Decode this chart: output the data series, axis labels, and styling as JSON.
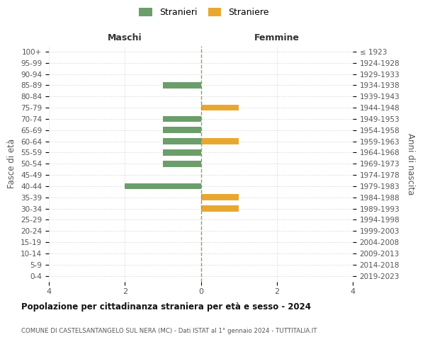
{
  "age_groups": [
    "0-4",
    "5-9",
    "10-14",
    "15-19",
    "20-24",
    "25-29",
    "30-34",
    "35-39",
    "40-44",
    "45-49",
    "50-54",
    "55-59",
    "60-64",
    "65-69",
    "70-74",
    "75-79",
    "80-84",
    "85-89",
    "90-94",
    "95-99",
    "100+"
  ],
  "birth_years": [
    "2019-2023",
    "2014-2018",
    "2009-2013",
    "2004-2008",
    "1999-2003",
    "1994-1998",
    "1989-1993",
    "1984-1988",
    "1979-1983",
    "1974-1978",
    "1969-1973",
    "1964-1968",
    "1959-1963",
    "1954-1958",
    "1949-1953",
    "1944-1948",
    "1939-1943",
    "1934-1938",
    "1929-1933",
    "1924-1928",
    "≤ 1923"
  ],
  "maschi_stranieri": [
    0,
    0,
    0,
    0,
    0,
    0,
    0,
    0,
    2,
    0,
    1,
    1,
    1,
    1,
    1,
    0,
    0,
    1,
    0,
    0,
    0
  ],
  "femmine_straniere": [
    0,
    0,
    0,
    0,
    0,
    0,
    1,
    1,
    0,
    0,
    0,
    0,
    1,
    0,
    0,
    1,
    0,
    0,
    0,
    0,
    0
  ],
  "color_maschi": "#6b9e6b",
  "color_femmine": "#e8a830",
  "title": "Popolazione per cittadinanza straniera per età e sesso - 2024",
  "subtitle": "COMUNE DI CASTELSANTANGELO SUL NERA (MC) - Dati ISTAT al 1° gennaio 2024 - TUTTITALIA.IT",
  "xlabel_maschi": "Maschi",
  "xlabel_femmine": "Femmine",
  "ylabel_left": "Fasce di età",
  "ylabel_right": "Anni di nascita",
  "legend_stranieri": "Stranieri",
  "legend_straniere": "Straniere",
  "xlim": 4,
  "background_color": "#ffffff",
  "grid_color": "#d0d0d0"
}
